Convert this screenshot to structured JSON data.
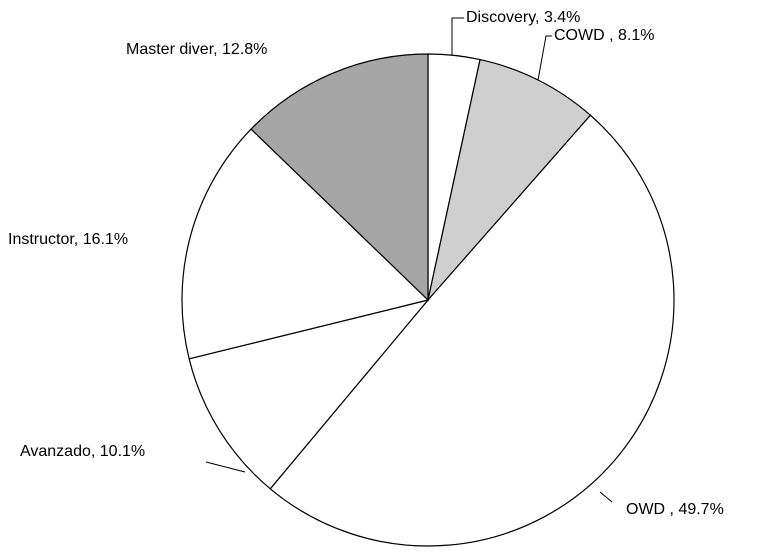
{
  "chart_data": {
    "type": "pie",
    "values": [
      3.4,
      8.1,
      49.7,
      10.1,
      16.1,
      12.8
    ],
    "value_labels": [
      "Discovery, 3.4%",
      "COWD , 8.1%",
      "OWD , 49.7%",
      "Avanzado, 10.1%",
      "Instructor, 16.1%",
      "Master diver, 12.8%"
    ],
    "colors": [
      "#ffffff",
      "#cfcfcf",
      "#ffffff",
      "#ffffff",
      "#ffffff",
      "#a6a6a6"
    ]
  }
}
